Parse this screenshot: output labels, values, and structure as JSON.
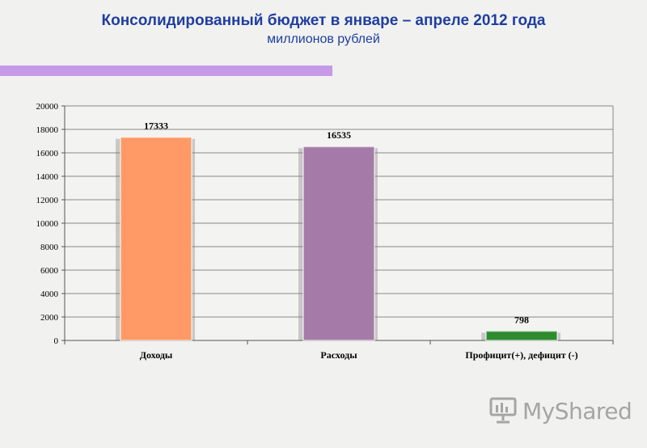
{
  "header": {
    "title": "Консолидированный бюджет в январе – апреле 2012 года",
    "subtitle": "миллионов рублей"
  },
  "colors": {
    "accent_bar": "#c79ae8",
    "title": "#1f3ea0"
  },
  "chart_data": {
    "type": "bar",
    "title": "",
    "xlabel": "",
    "ylabel": "",
    "ylim": [
      0,
      20000
    ],
    "ytick_step": 2000,
    "grid": true,
    "legend": "none",
    "categories": [
      "Доходы",
      "Расходы",
      "Профицит(+), дефицит (-)"
    ],
    "values": [
      17333,
      16535,
      798
    ],
    "data_labels": [
      "17333",
      "16535",
      "798"
    ],
    "bar_colors": [
      "#ff9966",
      "#a57aa8",
      "#2e8b2e"
    ]
  },
  "watermark": {
    "brand": "MyShared"
  }
}
